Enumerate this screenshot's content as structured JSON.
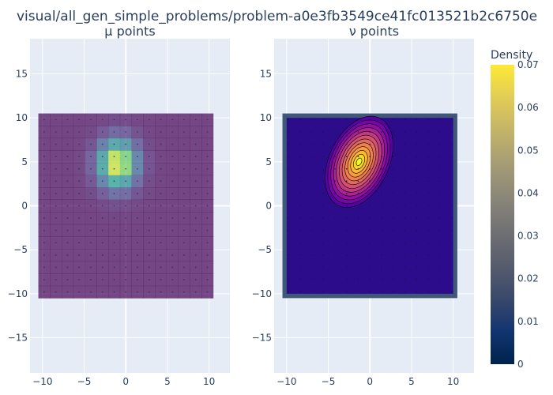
{
  "title": "visual/all_gen_simple_problems/problem-a0e3fb3549ce41fc013521b2c6750e",
  "colorbar": {
    "title": "Density",
    "range": [
      0,
      0.07
    ],
    "ticks": [
      0,
      0.01,
      0.02,
      0.03,
      0.04,
      0.05,
      0.06,
      0.07
    ],
    "tick_labels": [
      "0",
      "0.01",
      "0.02",
      "0.03",
      "0.04",
      "0.05",
      "0.06",
      "0.07"
    ],
    "colors": [
      "#00224e",
      "#123570",
      "#3b496c",
      "#575d6d",
      "#707173",
      "#8a8678",
      "#a59c74",
      "#c3b369",
      "#e1cc55",
      "#fee838"
    ]
  },
  "chart_data": [
    {
      "type": "heatmap",
      "title": "μ points",
      "xlim": [
        -11.5,
        12.5
      ],
      "ylim": [
        -19,
        19
      ],
      "x_ticks": [
        -10,
        -5,
        0,
        5,
        10
      ],
      "x_tick_labels": [
        "−10",
        "−5",
        "0",
        "5",
        "10"
      ],
      "y_ticks": [
        -15,
        -10,
        -5,
        0,
        5,
        10,
        15
      ],
      "y_tick_labels": [
        "−15",
        "−10",
        "−5",
        "0",
        "5",
        "10",
        "15"
      ],
      "grid": true,
      "extent": [
        -10.5,
        10.5
      ],
      "cell_size": 1.4,
      "center": [
        -1.0,
        4.8
      ],
      "sigma": [
        1.6,
        1.9
      ],
      "peak": 0.07,
      "opacity": 0.7,
      "colorscale": "viridis",
      "point_spacing": 1.4,
      "point_color": "#39286e"
    },
    {
      "type": "heatmap",
      "title": "ν points",
      "xlim": [
        -11.5,
        12.5
      ],
      "ylim": [
        -19,
        19
      ],
      "x_ticks": [
        -10,
        -5,
        0,
        5,
        10
      ],
      "x_tick_labels": [
        "−10",
        "−5",
        "0",
        "5",
        "10"
      ],
      "y_ticks": [
        -15,
        -10,
        -5,
        0,
        5,
        10,
        15
      ],
      "y_tick_labels": [
        "−15",
        "−10",
        "−5",
        "0",
        "5",
        "10",
        "15"
      ],
      "grid": true,
      "extent": [
        -10.5,
        10.5
      ],
      "border_color": "#3f5878",
      "background_color": "#2d0c8c",
      "contour_center": [
        -1.3,
        5.0
      ],
      "contour_radii": [
        3.6,
        5.5
      ],
      "contour_rotation_deg": 25,
      "contour_levels": 12,
      "colorscale": "plasma",
      "point_spacing": 1.4,
      "point_color": "#1e1058"
    }
  ]
}
